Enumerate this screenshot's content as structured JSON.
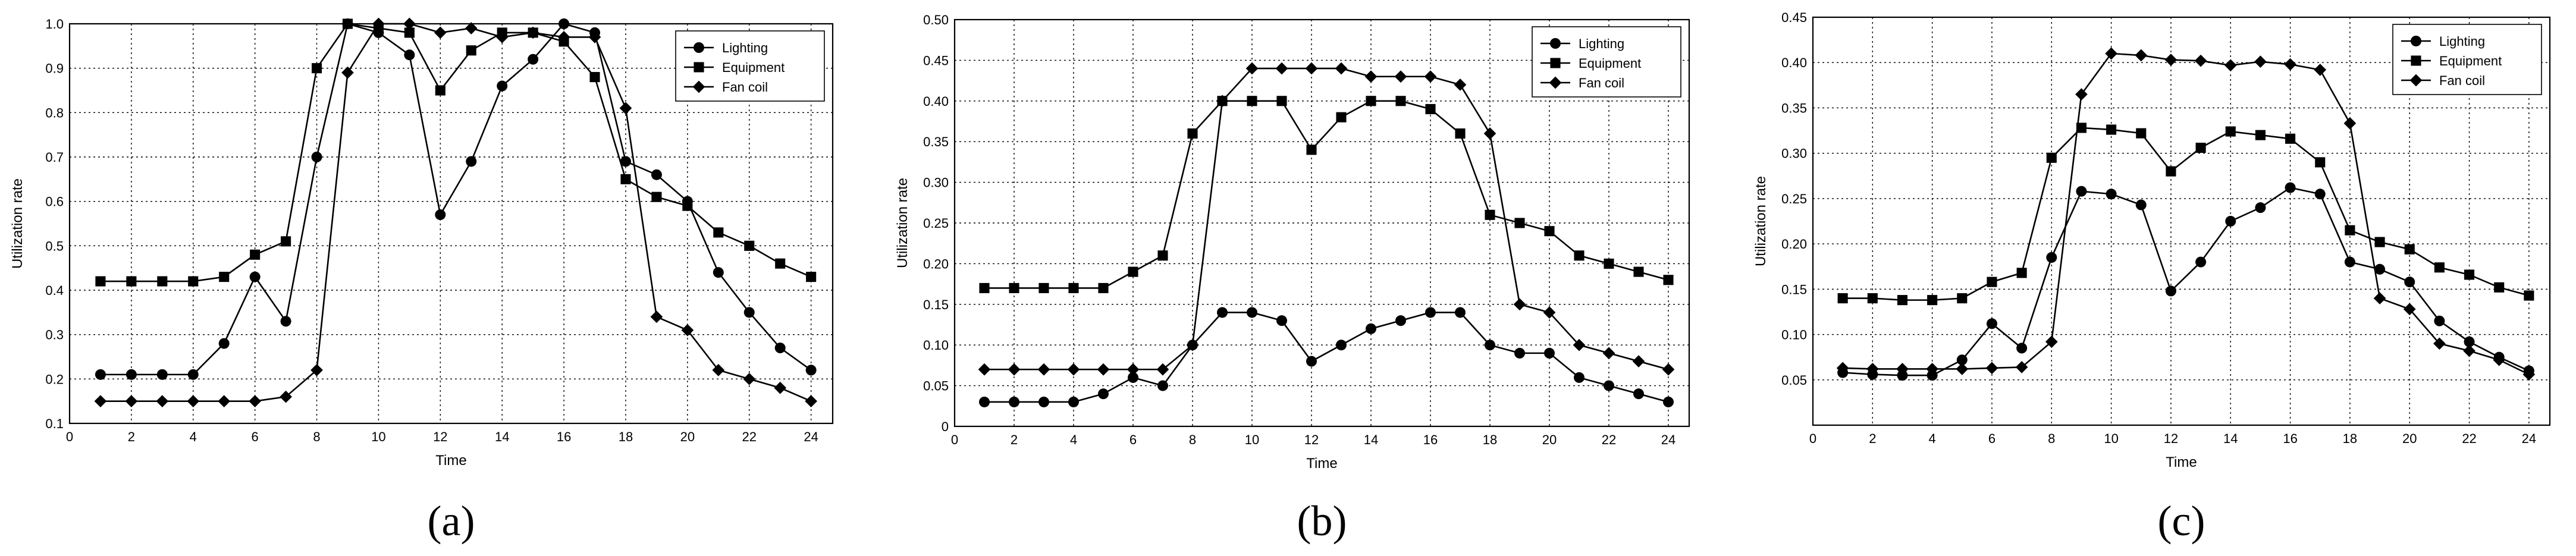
{
  "chart_data": [
    {
      "type": "line",
      "panel_label": "(a)",
      "xlabel": "Time",
      "ylabel": "Utilization rate",
      "x": [
        1,
        2,
        3,
        4,
        5,
        6,
        7,
        8,
        9,
        10,
        11,
        12,
        13,
        14,
        15,
        16,
        17,
        18,
        19,
        20,
        21,
        22,
        23,
        24
      ],
      "xlim": [
        0,
        24.7
      ],
      "ylim": [
        0.1,
        1.0
      ],
      "xticks": [
        0,
        2,
        4,
        6,
        8,
        10,
        12,
        14,
        16,
        18,
        20,
        22,
        24
      ],
      "yticks": [
        0.1,
        0.2,
        0.3,
        0.4,
        0.5,
        0.6,
        0.7,
        0.8,
        0.9,
        1.0
      ],
      "ytick_labels": [
        "0.1",
        "0.2",
        "0.3",
        "0.4",
        "0.5",
        "0.6",
        "0.7",
        "0.8",
        "0.9",
        "1.0"
      ],
      "grid": true,
      "legend_position": "top-right",
      "series": [
        {
          "name": "Lighting",
          "marker": "circle",
          "values": [
            0.21,
            0.21,
            0.21,
            0.21,
            0.28,
            0.43,
            0.33,
            0.7,
            1.0,
            0.98,
            0.93,
            0.57,
            0.69,
            0.86,
            0.92,
            1.0,
            0.98,
            0.69,
            0.66,
            0.6,
            0.44,
            0.35,
            0.27,
            0.22
          ]
        },
        {
          "name": "Equipment",
          "marker": "square",
          "values": [
            0.42,
            0.42,
            0.42,
            0.42,
            0.43,
            0.48,
            0.51,
            0.9,
            1.0,
            0.99,
            0.98,
            0.85,
            0.94,
            0.98,
            0.98,
            0.96,
            0.88,
            0.65,
            0.61,
            0.59,
            0.53,
            0.5,
            0.46,
            0.43
          ]
        },
        {
          "name": "Fan coil",
          "marker": "diamond",
          "values": [
            0.15,
            0.15,
            0.15,
            0.15,
            0.15,
            0.15,
            0.16,
            0.22,
            0.89,
            1.0,
            1.0,
            0.98,
            0.99,
            0.97,
            0.98,
            0.97,
            0.97,
            0.81,
            0.34,
            0.31,
            0.22,
            0.2,
            0.18,
            0.15
          ]
        }
      ]
    },
    {
      "type": "line",
      "panel_label": "(b)",
      "xlabel": "Time",
      "ylabel": "Utilization rate",
      "x": [
        1,
        2,
        3,
        4,
        5,
        6,
        7,
        8,
        9,
        10,
        11,
        12,
        13,
        14,
        15,
        16,
        17,
        18,
        19,
        20,
        21,
        22,
        23,
        24
      ],
      "xlim": [
        0,
        24.7
      ],
      "ylim": [
        0,
        0.5
      ],
      "xticks": [
        0,
        2,
        4,
        6,
        8,
        10,
        12,
        14,
        16,
        18,
        20,
        22,
        24
      ],
      "yticks": [
        0,
        0.05,
        0.1,
        0.15,
        0.2,
        0.25,
        0.3,
        0.35,
        0.4,
        0.45,
        0.5
      ],
      "ytick_labels": [
        "0",
        "0.05",
        "0.10",
        "0.15",
        "0.20",
        "0.25",
        "0.30",
        "0.35",
        "0.40",
        "0.45",
        "0.50"
      ],
      "grid": true,
      "legend_position": "top-right",
      "series": [
        {
          "name": "Lighting",
          "marker": "circle",
          "values": [
            0.03,
            0.03,
            0.03,
            0.03,
            0.04,
            0.06,
            0.05,
            0.1,
            0.14,
            0.14,
            0.13,
            0.08,
            0.1,
            0.12,
            0.13,
            0.14,
            0.14,
            0.1,
            0.09,
            0.09,
            0.06,
            0.05,
            0.04,
            0.03
          ]
        },
        {
          "name": "Equipment",
          "marker": "square",
          "values": [
            0.17,
            0.17,
            0.17,
            0.17,
            0.17,
            0.19,
            0.21,
            0.36,
            0.4,
            0.4,
            0.4,
            0.34,
            0.38,
            0.4,
            0.4,
            0.39,
            0.36,
            0.26,
            0.25,
            0.24,
            0.21,
            0.2,
            0.19,
            0.18
          ]
        },
        {
          "name": "Fan coil",
          "marker": "diamond",
          "values": [
            0.07,
            0.07,
            0.07,
            0.07,
            0.07,
            0.07,
            0.07,
            0.1,
            0.4,
            0.44,
            0.44,
            0.44,
            0.44,
            0.43,
            0.43,
            0.43,
            0.42,
            0.36,
            0.15,
            0.14,
            0.1,
            0.09,
            0.08,
            0.07
          ]
        }
      ]
    },
    {
      "type": "line",
      "panel_label": "(c)",
      "xlabel": "Time",
      "ylabel": "Utilization rate",
      "x": [
        1,
        2,
        3,
        4,
        5,
        6,
        7,
        8,
        9,
        10,
        11,
        12,
        13,
        14,
        15,
        16,
        17,
        18,
        19,
        20,
        21,
        22,
        23,
        24
      ],
      "xlim": [
        0,
        24.7
      ],
      "ylim": [
        0,
        0.45
      ],
      "xticks": [
        0,
        2,
        4,
        6,
        8,
        10,
        12,
        14,
        16,
        18,
        20,
        22,
        24
      ],
      "yticks": [
        0.05,
        0.1,
        0.15,
        0.2,
        0.25,
        0.3,
        0.35,
        0.4,
        0.45
      ],
      "ytick_labels": [
        "0.05",
        "0.10",
        "0.15",
        "0.20",
        "0.25",
        "0.30",
        "0.35",
        "0.40",
        "0.45"
      ],
      "grid": true,
      "legend_position": "top-right",
      "series": [
        {
          "name": "Lighting",
          "marker": "circle",
          "values": [
            0.058,
            0.056,
            0.055,
            0.055,
            0.072,
            0.112,
            0.085,
            0.185,
            0.258,
            0.255,
            0.243,
            0.148,
            0.18,
            0.225,
            0.24,
            0.262,
            0.255,
            0.18,
            0.172,
            0.158,
            0.115,
            0.092,
            0.075,
            0.06
          ]
        },
        {
          "name": "Equipment",
          "marker": "square",
          "values": [
            0.14,
            0.14,
            0.138,
            0.138,
            0.14,
            0.158,
            0.168,
            0.295,
            0.328,
            0.326,
            0.322,
            0.28,
            0.306,
            0.324,
            0.32,
            0.316,
            0.29,
            0.215,
            0.202,
            0.194,
            0.174,
            0.166,
            0.152,
            0.143
          ]
        },
        {
          "name": "Fan coil",
          "marker": "diamond",
          "values": [
            0.063,
            0.062,
            0.062,
            0.062,
            0.062,
            0.063,
            0.064,
            0.092,
            0.365,
            0.41,
            0.408,
            0.403,
            0.402,
            0.397,
            0.401,
            0.398,
            0.392,
            0.333,
            0.14,
            0.128,
            0.09,
            0.082,
            0.072,
            0.056
          ]
        }
      ]
    }
  ]
}
